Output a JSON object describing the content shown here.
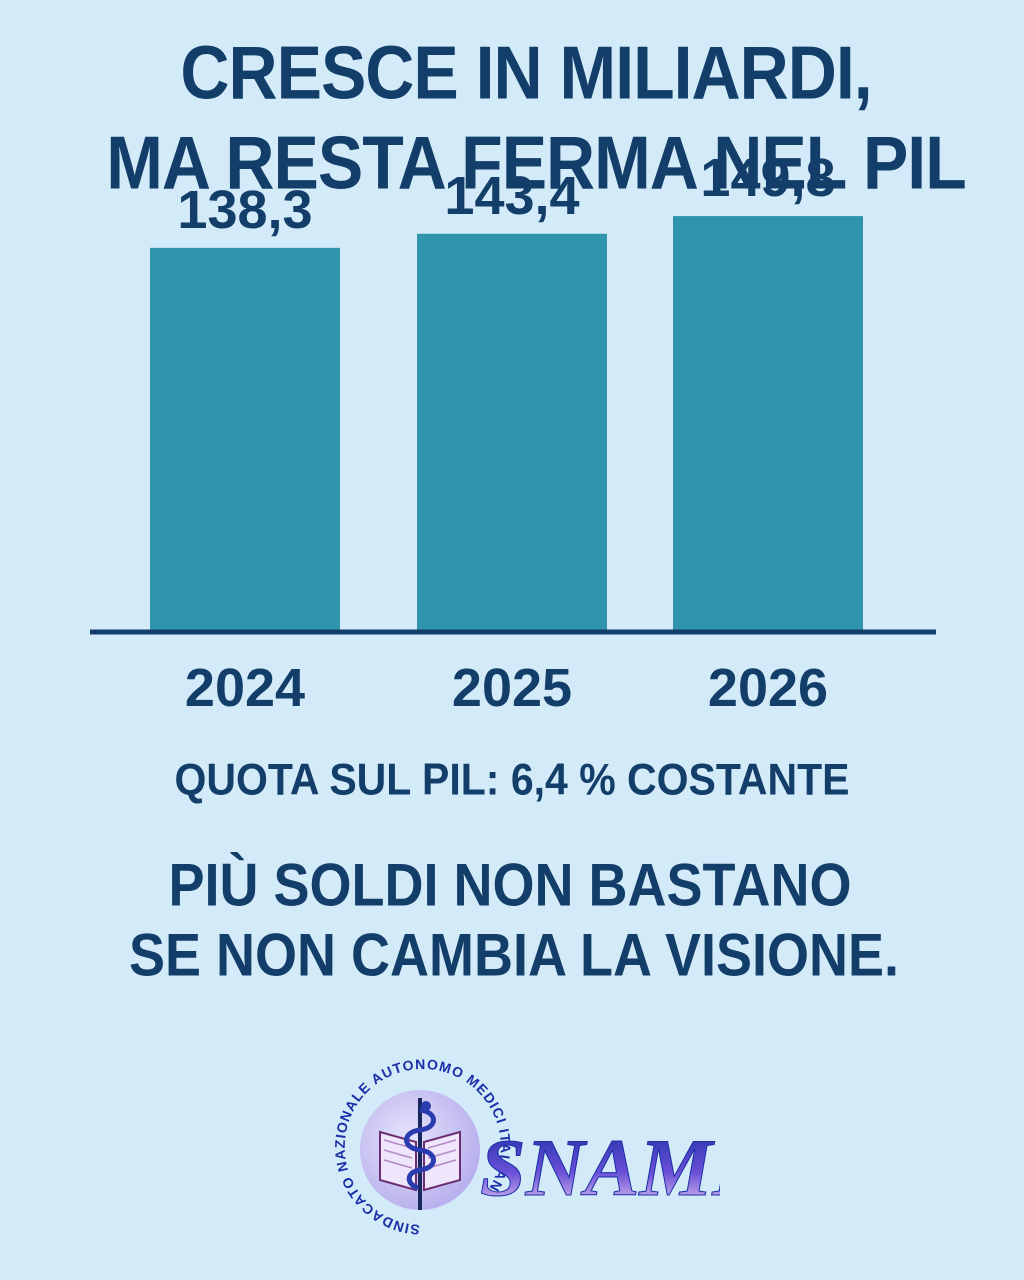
{
  "header": {
    "title_line_1": "CRESCE IN MILIARDI,",
    "title_line_2": "MA RESTA FERMA NEL PIL"
  },
  "chart_data": {
    "type": "bar",
    "title": "CRESCE IN MILIARDI, MA RESTA FERMA NEL PIL",
    "categories": [
      "2024",
      "2025",
      "2026"
    ],
    "values": [
      138.3,
      143.4,
      149.8
    ],
    "value_labels": [
      "138,3",
      "143,4",
      "149,8"
    ],
    "xlabel": "",
    "ylabel": "",
    "ylim": [
      0,
      152
    ],
    "grid": false,
    "legend": "none",
    "colors": {
      "bar": "#2e95ad",
      "text": "#133e69",
      "background": "#d3ebf8"
    }
  },
  "footer": {
    "subtitle": "QUOTA SUL PIL: 6,4 % COSTANTE",
    "slogan_line_1": "PIÙ SOLDI NON BASTANO",
    "slogan_line_2": "SE NON CAMBIA LA VISIONE."
  },
  "logo": {
    "name": "SNAMI",
    "ring_text": "SINDACATO NAZIONALE AUTONOMO MEDICI ITALIANI",
    "icon": "caduceus-book-icon"
  }
}
